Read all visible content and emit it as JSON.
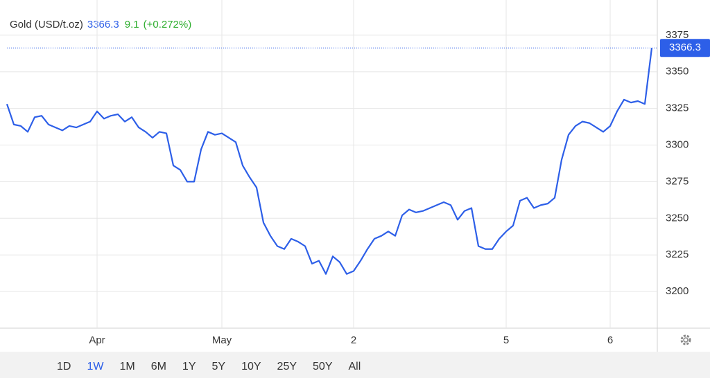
{
  "chart_data": {
    "type": "line",
    "title": "Gold (USD/t.oz)",
    "price": 3366.3,
    "change": 9.1,
    "change_pct": {
      "value": 0.272,
      "label": "(+0.272%)"
    },
    "color": "#2d5fe8",
    "change_color": "#2fae2f",
    "values": [
      3328,
      3314,
      3313,
      3309,
      3319,
      3320,
      3314,
      3312,
      3310,
      3313,
      3312,
      3314,
      3316,
      3323,
      3318,
      3320,
      3321,
      3316,
      3319,
      3312,
      3309,
      3305,
      3309,
      3308,
      3286,
      3283,
      3275,
      3275,
      3297,
      3309,
      3307,
      3308,
      3305,
      3302,
      3286,
      3278,
      3271,
      3247,
      3238,
      3231,
      3229,
      3236,
      3234,
      3231,
      3219,
      3221,
      3212,
      3224,
      3220,
      3212,
      3214,
      3221,
      3229,
      3236,
      3238,
      3241,
      3238,
      3252,
      3256,
      3254,
      3255,
      3257,
      3259,
      3261,
      3259,
      3249,
      3255,
      3257,
      3231,
      3229,
      3229,
      3236,
      3241,
      3245,
      3262,
      3264,
      3257,
      3259,
      3260,
      3264,
      3290,
      3307,
      3313,
      3316,
      3315,
      3312,
      3309,
      3313,
      3323,
      3331,
      3329,
      3330,
      3328,
      3366.3
    ],
    "xticks": [
      {
        "value": 13,
        "label": "Apr"
      },
      {
        "value": 31,
        "label": "May"
      },
      {
        "value": 50,
        "label": "2"
      },
      {
        "value": 72,
        "label": "5"
      },
      {
        "value": 87,
        "label": "6"
      }
    ],
    "ylim": [
      3175,
      3399
    ],
    "yticks": [
      3200,
      3225,
      3250,
      3275,
      3300,
      3325,
      3350,
      3375
    ],
    "grid": true,
    "range_buttons": [
      "1D",
      "1W",
      "1M",
      "6M",
      "1Y",
      "5Y",
      "10Y",
      "25Y",
      "50Y",
      "All"
    ],
    "selected_range": "1W"
  }
}
